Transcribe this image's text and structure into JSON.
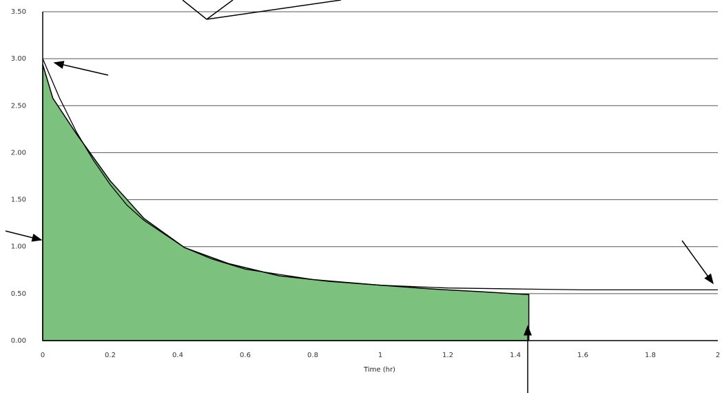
{
  "chart_data": {
    "type": "area",
    "xlabel": "Time (hr)",
    "ylabel": "",
    "xlim": [
      0,
      2
    ],
    "ylim": [
      0,
      3.5
    ],
    "x_ticks": [
      "0",
      "0.2",
      "0.4",
      "0.6",
      "0.8",
      "1",
      "1.2",
      "1.4",
      "1.6",
      "1.8",
      "2"
    ],
    "y_ticks": [
      "0.00",
      "0.50",
      "1.00",
      "1.50",
      "2.00",
      "2.50",
      "3.00",
      "3.50"
    ],
    "grid": "horizontal",
    "series": [
      {
        "kind": "shaded-area",
        "color": "#7dc17f",
        "x": [
          0,
          0.03,
          0.1,
          0.2,
          0.3,
          0.42,
          0.55,
          0.7,
          0.85,
          1.0,
          1.15,
          1.3,
          1.44
        ],
        "y": [
          2.94,
          2.58,
          2.2,
          1.7,
          1.3,
          0.99,
          0.82,
          0.69,
          0.63,
          0.59,
          0.55,
          0.52,
          0.49
        ]
      },
      {
        "kind": "line",
        "color": "#000000",
        "x": [
          0,
          0.05,
          0.1,
          0.15,
          0.2,
          0.25,
          0.3,
          0.42,
          0.5,
          0.6,
          0.8,
          1.0,
          1.2,
          1.4,
          1.6,
          1.8,
          2.0
        ],
        "y": [
          3.0,
          2.58,
          2.22,
          1.92,
          1.66,
          1.44,
          1.28,
          0.99,
          0.87,
          0.76,
          0.65,
          0.59,
          0.56,
          0.55,
          0.54,
          0.54,
          0.54
        ]
      }
    ],
    "marker_x": 1.44
  }
}
